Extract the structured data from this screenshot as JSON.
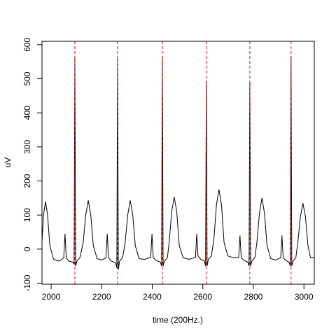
{
  "chart_data": {
    "type": "line",
    "xlabel": "time (200Hz.)",
    "ylabel": "uV",
    "color": "#000000",
    "xlim": [
      1964,
      3041
    ],
    "ylim": [
      -103,
      610
    ],
    "xticks": [
      2000,
      2200,
      2400,
      2600,
      2800,
      3000
    ],
    "yticks": [
      -100,
      0,
      100,
      200,
      300,
      400,
      500,
      600
    ],
    "vlines": [
      2094,
      2263,
      2440,
      2614,
      2786,
      2949
    ],
    "vline_color": "#ff0000",
    "x": [
      1964,
      1970,
      1978,
      1986,
      1995,
      2010,
      2030,
      2040,
      2050,
      2055,
      2060,
      2069,
      2086,
      2091,
      2094,
      2097,
      2102,
      2114,
      2127,
      2137,
      2147,
      2157,
      2167,
      2182,
      2200,
      2212,
      2217,
      2222,
      2227,
      2238,
      2255,
      2260,
      2263,
      2266,
      2271,
      2283,
      2293,
      2303,
      2313,
      2323,
      2333,
      2348,
      2370,
      2390,
      2394,
      2399,
      2404,
      2415,
      2432,
      2437,
      2440,
      2443,
      2448,
      2460,
      2467,
      2477,
      2487,
      2497,
      2507,
      2522,
      2545,
      2567,
      2571,
      2576,
      2581,
      2592,
      2606,
      2611,
      2614,
      2617,
      2622,
      2634,
      2644,
      2654,
      2664,
      2674,
      2684,
      2699,
      2720,
      2740,
      2742,
      2747,
      2752,
      2763,
      2778,
      2783,
      2786,
      2789,
      2794,
      2806,
      2814,
      2824,
      2834,
      2844,
      2854,
      2869,
      2890,
      2908,
      2913,
      2918,
      2928,
      2941,
      2946,
      2949,
      2952,
      2957,
      2968,
      2976,
      2986,
      2996,
      3006,
      3016,
      3026,
      3041
    ],
    "values": [
      20,
      100,
      140,
      100,
      10,
      -30,
      -35,
      -32,
      -25,
      45,
      -25,
      -35,
      -38,
      -45,
      560,
      -50,
      -35,
      -25,
      20,
      100,
      143,
      100,
      10,
      -28,
      -32,
      -28,
      -25,
      45,
      -25,
      -35,
      -40,
      -55,
      560,
      -60,
      -35,
      -25,
      20,
      100,
      143,
      100,
      10,
      -28,
      -30,
      -25,
      -25,
      45,
      -25,
      -33,
      -38,
      -50,
      560,
      -50,
      -35,
      -25,
      20,
      110,
      153,
      110,
      10,
      -25,
      -30,
      -25,
      -25,
      45,
      -20,
      -30,
      -35,
      -50,
      490,
      -50,
      -30,
      -20,
      30,
      130,
      175,
      130,
      20,
      -20,
      -25,
      -25,
      -25,
      40,
      -25,
      -33,
      -38,
      -50,
      490,
      -50,
      -35,
      -25,
      20,
      105,
      150,
      105,
      10,
      -28,
      -32,
      -25,
      40,
      -25,
      -33,
      -38,
      -50,
      565,
      -50,
      -35,
      -25,
      20,
      95,
      135,
      95,
      10,
      -25,
      -25
    ]
  }
}
